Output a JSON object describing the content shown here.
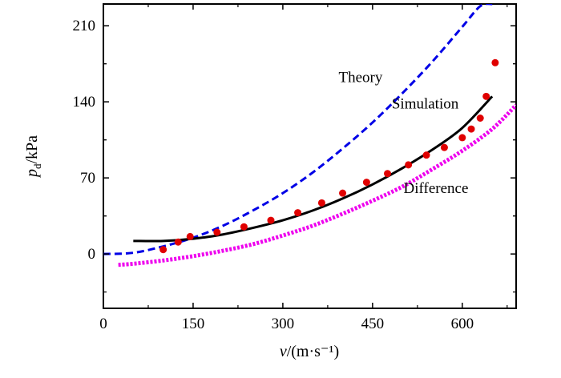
{
  "chart_data": {
    "type": "line",
    "x_ticks": [
      "0",
      "150",
      "300",
      "450",
      "600"
    ],
    "y_ticks": [
      "0",
      "70",
      "140",
      "210"
    ],
    "xlim": [
      0,
      690
    ],
    "ylim": [
      -50,
      230
    ],
    "series": [
      {
        "name": "Theory",
        "style": "dashed-line",
        "color": "#0000e6",
        "x": [
          0,
          50,
          100,
          150,
          200,
          250,
          300,
          350,
          400,
          450,
          500,
          550,
          600,
          630,
          650
        ],
        "y": [
          0,
          1.1,
          7,
          15,
          26,
          40,
          56,
          75,
          97,
          121,
          148,
          177,
          209,
          228,
          230
        ]
      },
      {
        "name": "Simulation",
        "style": "solid-line",
        "color": "#000000",
        "x": [
          50,
          100,
          150,
          200,
          250,
          300,
          350,
          400,
          450,
          500,
          550,
          600,
          650
        ],
        "y": [
          12,
          12,
          14,
          18,
          24,
          31,
          40,
          51,
          64,
          79,
          96,
          116,
          145
        ]
      },
      {
        "name": "Difference",
        "style": "dotted-line",
        "color": "#ee00ee",
        "x": [
          25,
          50,
          100,
          150,
          200,
          250,
          300,
          350,
          400,
          450,
          500,
          550,
          600,
          650,
          690
        ],
        "y": [
          -10,
          -9,
          -6,
          -2,
          3,
          9,
          17,
          26,
          37,
          49,
          62,
          78,
          95,
          115,
          137
        ]
      },
      {
        "name": "",
        "style": "points",
        "color": "#e00000",
        "x": [
          100,
          125,
          145,
          190,
          235,
          280,
          325,
          365,
          400,
          440,
          475,
          510,
          540,
          570,
          600,
          615,
          630,
          640,
          655
        ],
        "y": [
          4,
          11,
          16,
          20,
          25,
          31,
          38,
          47,
          56,
          66,
          74,
          82,
          91,
          98,
          107,
          115,
          125,
          145,
          176
        ]
      }
    ],
    "xlabel": "v/(m·s⁻¹)",
    "ylabel": "pd/kPa",
    "annotations": [
      {
        "text": "Theory",
        "x": 430,
        "y": 158
      },
      {
        "text": "Simulation",
        "x": 538,
        "y": 134
      },
      {
        "text": "Difference",
        "x": 556,
        "y": 56
      }
    ]
  }
}
